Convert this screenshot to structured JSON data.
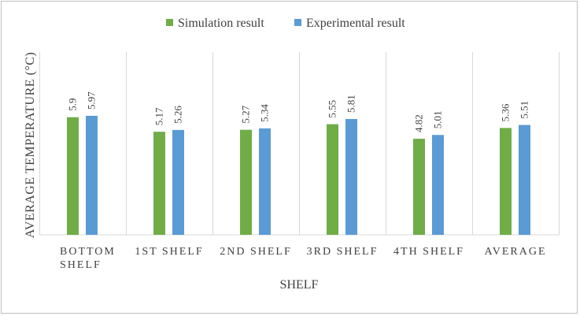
{
  "chart_data": {
    "type": "bar",
    "categories": [
      "BOTTOM SHELF",
      "1ST SHELF",
      "2ND SHELF",
      "3RD SHELF",
      "4TH SHELF",
      "AVERAGE"
    ],
    "series": [
      {
        "name": "Simulation result",
        "color": "#70ad47",
        "values": [
          5.9,
          5.17,
          5.27,
          5.55,
          4.82,
          5.36
        ]
      },
      {
        "name": "Experimental result",
        "color": "#5b9bd5",
        "values": [
          5.97,
          5.26,
          5.34,
          5.81,
          5.01,
          5.51
        ]
      }
    ],
    "value_labels": [
      [
        "5.9",
        "5.17",
        "5.27",
        "5.55",
        "4.82",
        "5.36"
      ],
      [
        "5.97",
        "5.26",
        "5.34",
        "5.81",
        "5.01",
        "5.51"
      ]
    ],
    "title": "",
    "xlabel": "SHELF",
    "ylabel": "AVERAGE TEMPERATURE (°C)",
    "ylim": [
      0,
      10
    ],
    "grid": "vertical category separators",
    "legend": "top-center",
    "data_labels": true
  }
}
